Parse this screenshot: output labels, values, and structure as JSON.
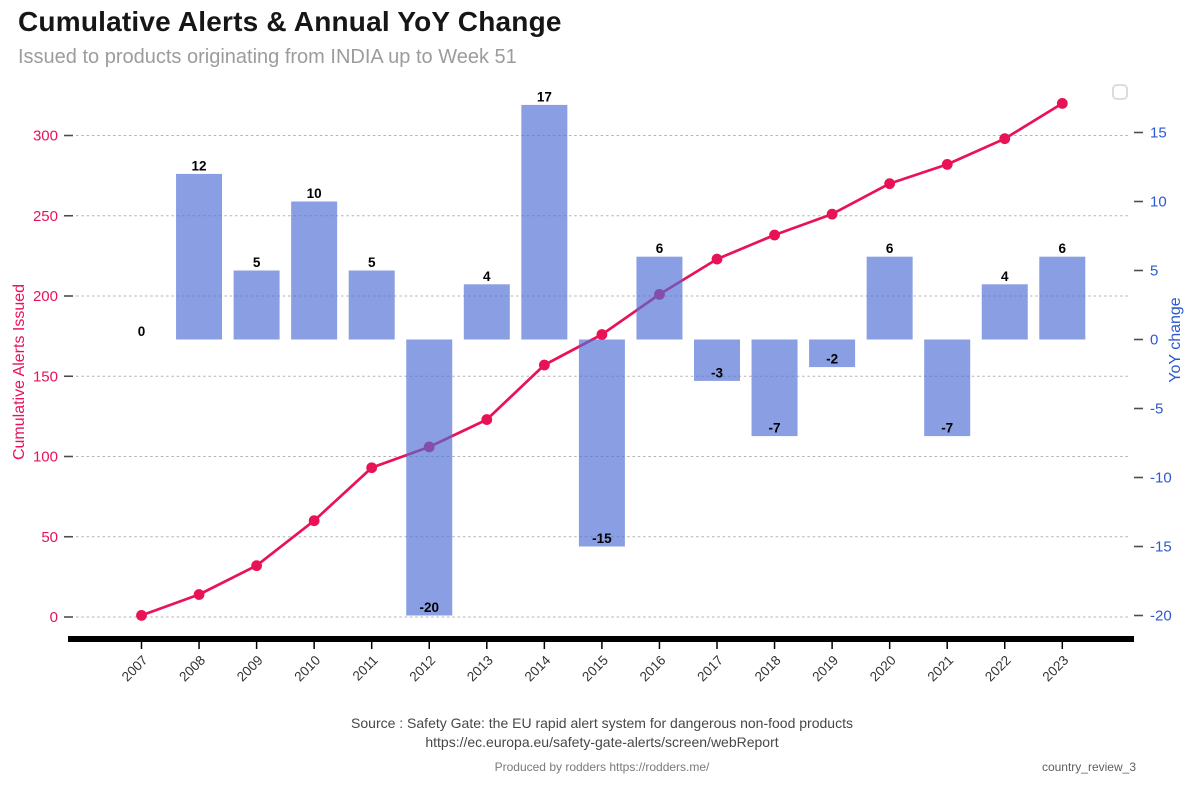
{
  "header": {
    "title": "Cumulative Alerts & Annual YoY Change",
    "subtitle": "Issued to products originating from INDIA up to Week 51"
  },
  "chart_data": {
    "type": "bar+line dual-axis combo",
    "categories": [
      "2007",
      "2008",
      "2009",
      "2010",
      "2011",
      "2012",
      "2013",
      "2014",
      "2015",
      "2016",
      "2017",
      "2018",
      "2019",
      "2020",
      "2021",
      "2022",
      "2023"
    ],
    "series": [
      {
        "name": "Cumulative Alerts Issued",
        "type": "line",
        "axis": "left",
        "color": "#ea1256",
        "marker": "circle",
        "values": [
          1,
          14,
          32,
          60,
          93,
          106,
          123,
          157,
          176,
          201,
          223,
          238,
          251,
          270,
          282,
          298,
          320
        ]
      },
      {
        "name": "YoY change",
        "type": "bar",
        "axis": "right",
        "color": "rgba(80,111,213,0.67)",
        "values": [
          0,
          12,
          5,
          10,
          5,
          -20,
          4,
          17,
          -15,
          6,
          -3,
          -7,
          -2,
          6,
          -7,
          4,
          6
        ]
      }
    ],
    "left_axis": {
      "label": "Cumulative Alerts Issued",
      "color": "#ea1256",
      "ticks": [
        0,
        50,
        100,
        150,
        200,
        250,
        300
      ],
      "range": [
        0,
        310
      ]
    },
    "right_axis": {
      "label": "YoY change",
      "color": "#2b59d0",
      "ticks": [
        15,
        10,
        5,
        0,
        -5,
        -10,
        -15,
        -20
      ],
      "range": [
        -21,
        16
      ]
    },
    "x_axis": {
      "tick_label_rotation_deg": 45,
      "label_color": "#333333",
      "spine_color": "#000000"
    },
    "grid": {
      "horizontal": "dashed",
      "color": "#b3b3b3",
      "at": "left-axis-ticks"
    },
    "legend": {
      "visible": true,
      "entries": []
    },
    "bar_label_color": "#000000"
  },
  "source": {
    "line1": "Source : Safety Gate: the EU rapid alert system for dangerous non-food products",
    "line2": "https://ec.europa.eu/safety-gate-alerts/screen/webReport"
  },
  "footer": {
    "center": "Produced by rodders https://rodders.me/",
    "right_tag": "country_review_3"
  }
}
